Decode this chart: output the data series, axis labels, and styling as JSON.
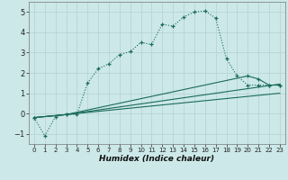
{
  "xlabel": "Humidex (Indice chaleur)",
  "bg_color": "#cce8e8",
  "grid_color": "#b8d4d4",
  "line_color": "#1a6b5a",
  "xlim": [
    -0.5,
    23.5
  ],
  "ylim": [
    -1.5,
    5.5
  ],
  "yticks": [
    -1,
    0,
    1,
    2,
    3,
    4,
    5
  ],
  "xticks": [
    0,
    1,
    2,
    3,
    4,
    5,
    6,
    7,
    8,
    9,
    10,
    11,
    12,
    13,
    14,
    15,
    16,
    17,
    18,
    19,
    20,
    21,
    22,
    23
  ],
  "curve1_x": [
    0,
    1,
    2,
    3,
    4,
    5,
    6,
    7,
    8,
    9,
    10,
    11,
    12,
    13,
    14,
    15,
    16,
    17,
    18,
    19,
    20,
    21,
    22,
    23
  ],
  "curve1_y": [
    -0.2,
    -1.1,
    -0.15,
    -0.05,
    -0.05,
    1.5,
    2.2,
    2.45,
    2.9,
    3.05,
    3.5,
    3.4,
    4.4,
    4.3,
    4.75,
    5.0,
    5.05,
    4.7,
    2.7,
    1.85,
    1.4,
    1.4,
    1.4,
    1.4
  ],
  "curve2_x": [
    0,
    3,
    23
  ],
  "curve2_y": [
    -0.2,
    -0.05,
    1.0
  ],
  "curve3_x": [
    0,
    3,
    23
  ],
  "curve3_y": [
    -0.2,
    -0.05,
    1.45
  ],
  "curve4_x": [
    0,
    3,
    20,
    21,
    22,
    23
  ],
  "curve4_y": [
    -0.2,
    -0.05,
    1.85,
    1.7,
    1.4,
    1.4
  ]
}
